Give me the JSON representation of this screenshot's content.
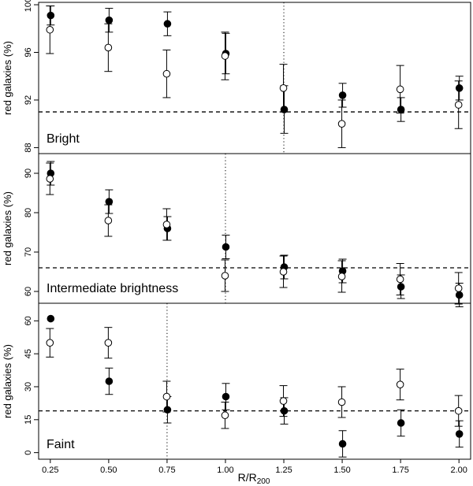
{
  "chart_data": [
    {
      "type": "scatter",
      "title": "",
      "panel_label": "Bright",
      "ylabel": "red galaxies (%)",
      "ylim": [
        87.5,
        100.2
      ],
      "yticks": [
        "88",
        "92",
        "96",
        "100"
      ],
      "reference_y": 91,
      "vline_x": 1.25,
      "x": [
        0.25,
        0.5,
        0.75,
        1.0,
        1.25,
        1.5,
        1.75,
        2.0
      ],
      "series": [
        {
          "name": "filled",
          "values": [
            99.1,
            98.7,
            98.4,
            95.9,
            91.2,
            92.4,
            91.2,
            93.0
          ],
          "err": [
            0.8,
            1.0,
            1.0,
            1.7,
            2.0,
            1.0,
            1.0,
            1.0
          ]
        },
        {
          "name": "open",
          "values": [
            97.9,
            96.4,
            94.2,
            95.7,
            93.0,
            90.0,
            92.9,
            91.6
          ],
          "err": [
            2.0,
            2.0,
            2.0,
            2.0,
            2.0,
            2.0,
            2.0,
            2.0
          ]
        }
      ]
    },
    {
      "type": "scatter",
      "title": "",
      "panel_label": "Intermediate brightness",
      "ylabel": "red galaxies (%)",
      "ylim": [
        57,
        95
      ],
      "yticks": [
        "60",
        "70",
        "80",
        "90"
      ],
      "reference_y": 66,
      "vline_x": 1.0,
      "x": [
        0.25,
        0.5,
        0.75,
        1.0,
        1.25,
        1.5,
        1.75,
        2.0
      ],
      "series": [
        {
          "name": "filled",
          "values": [
            90.0,
            82.8,
            76.0,
            71.3,
            66.2,
            65.2,
            61.2,
            59.1
          ],
          "err": [
            3.0,
            3.0,
            3.0,
            3.0,
            3.0,
            3.0,
            3.0,
            3.0
          ]
        },
        {
          "name": "open",
          "values": [
            88.6,
            78.0,
            77.0,
            64.0,
            65.0,
            63.8,
            63.1,
            60.8
          ],
          "err": [
            4.0,
            4.0,
            4.0,
            4.0,
            4.0,
            4.0,
            4.0,
            4.0
          ]
        }
      ]
    },
    {
      "type": "scatter",
      "title": "",
      "panel_label": "Faint",
      "ylabel": "red galaxies (%)",
      "ylim": [
        -3,
        68
      ],
      "yticks": [
        "0",
        "15",
        "30",
        "45",
        "60"
      ],
      "reference_y": 19,
      "vline_x": 0.75,
      "xlabel": "R/R200",
      "xticks": [
        "0.25",
        "0.50",
        "0.75",
        "1.00",
        "1.25",
        "1.50",
        "1.75",
        "2.00"
      ],
      "x": [
        0.25,
        0.5,
        0.75,
        1.0,
        1.25,
        1.5,
        1.75,
        2.0
      ],
      "series": [
        {
          "name": "filled",
          "values": [
            61.0,
            32.5,
            19.5,
            25.5,
            19.0,
            4.0,
            13.5,
            8.5
          ],
          "err": [
            0,
            6.0,
            6.0,
            6.0,
            6.0,
            6.0,
            6.0,
            6.0
          ]
        },
        {
          "name": "open",
          "values": [
            50.0,
            50.0,
            25.5,
            17.0,
            23.5,
            23.0,
            31.0,
            19.0
          ],
          "err": [
            6.5,
            7.0,
            7.0,
            6.0,
            7.0,
            7.0,
            7.0,
            7.0
          ]
        }
      ]
    }
  ],
  "xlabel_main": "R/R",
  "xlabel_sub": "200",
  "colors": {
    "axis": "#000000",
    "marker": "#000000",
    "background": "#ffffff"
  }
}
